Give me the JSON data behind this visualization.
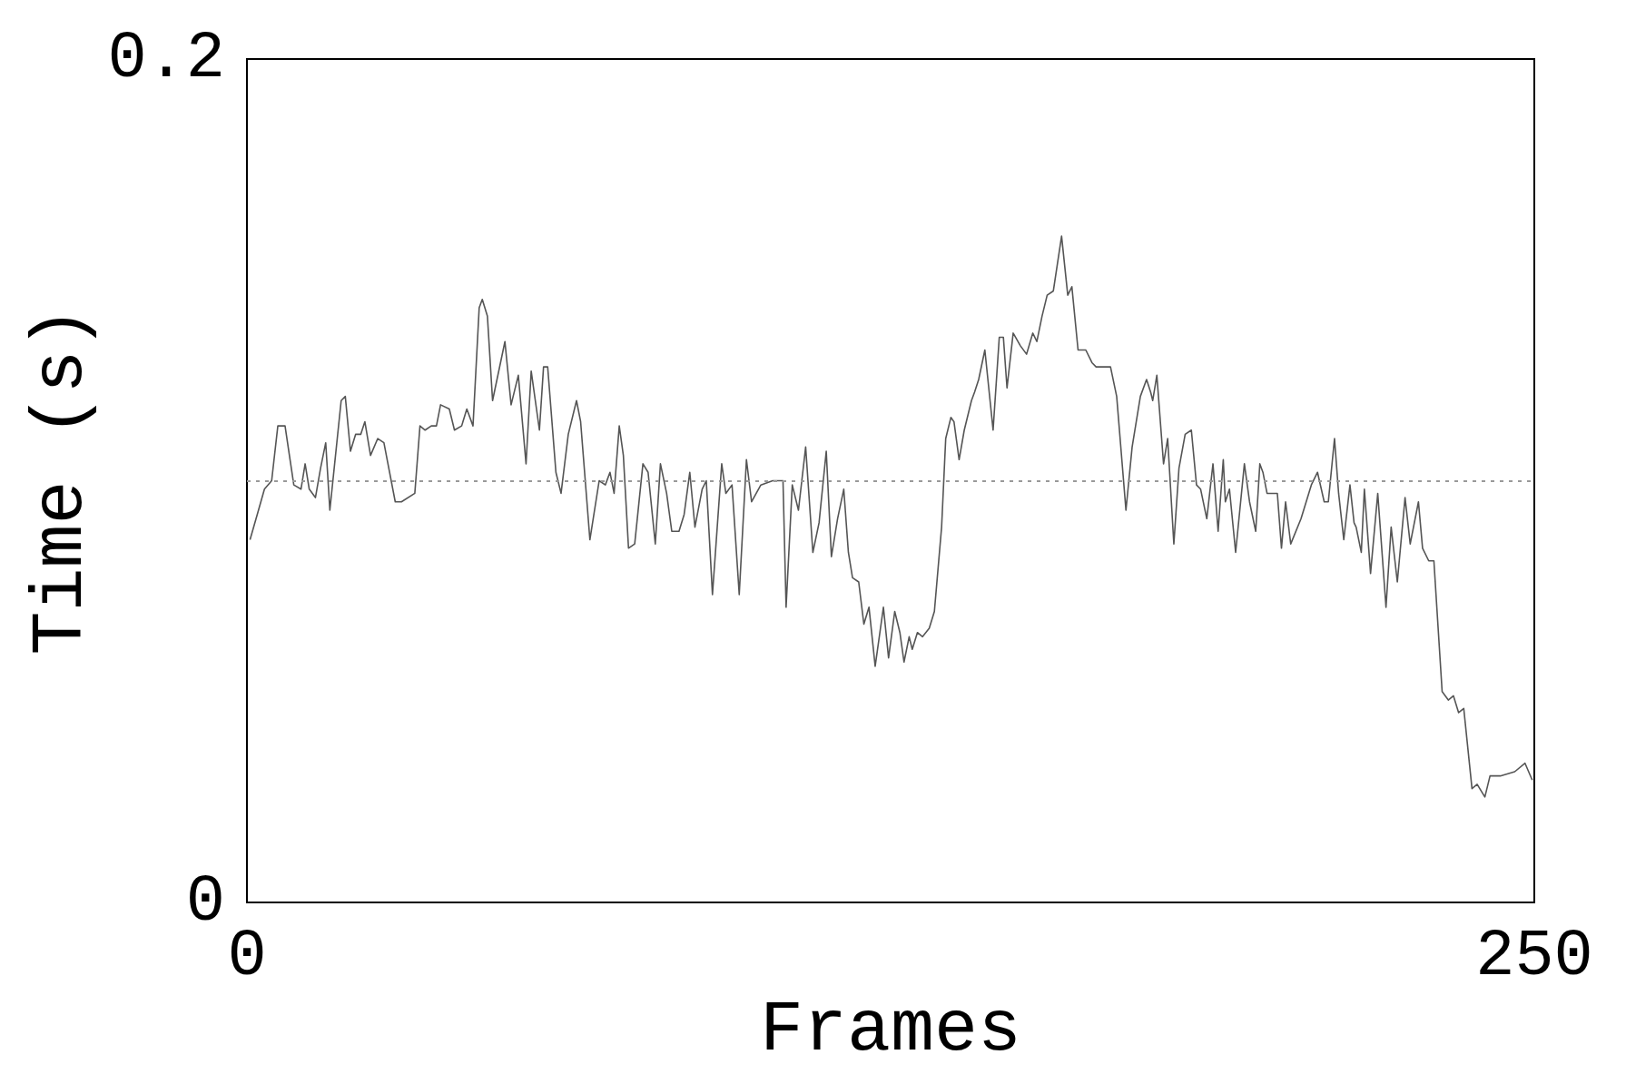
{
  "chart_data": {
    "type": "line",
    "xlabel": "Frames",
    "ylabel": "Time (s)",
    "xlim": [
      0,
      250
    ],
    "xticks": [
      0,
      250
    ],
    "ylim": [
      0,
      0.2
    ],
    "yticks": [
      0,
      0.2
    ],
    "grid": false,
    "marker": "none",
    "line_style": "solid",
    "ref_lines": [
      {
        "axis": "y",
        "value": 0.1,
        "color": "#999999",
        "line_style": "dotted"
      }
    ],
    "x": [
      0.6,
      2.0,
      3.4,
      4.8,
      6.0,
      7.4,
      9.1,
      10.5,
      11.3,
      12.1,
      13.3,
      14.3,
      15.3,
      16.1,
      18.3,
      19.1,
      20.1,
      21.1,
      22.1,
      22.9,
      24.0,
      25.4,
      26.6,
      28.8,
      30.0,
      32.6,
      33.6,
      34.6,
      35.8,
      36.8,
      37.6,
      39.3,
      40.3,
      41.7,
      42.7,
      43.9,
      45.1,
      45.7,
      46.7,
      47.7,
      50.1,
      51.3,
      52.7,
      54.2,
      55.2,
      56.8,
      57.6,
      58.4,
      60.0,
      61.0,
      62.4,
      64.0,
      64.8,
      66.6,
      68.4,
      69.6,
      70.5,
      71.3,
      72.3,
      73.1,
      74.1,
      75.3,
      76.9,
      77.9,
      79.3,
      80.3,
      81.5,
      82.5,
      83.9,
      84.9,
      86.0,
      87.0,
      88.4,
      89.2,
      90.4,
      92.2,
      93.0,
      94.2,
      95.6,
      97.0,
      98.0,
      99.8,
      102.1,
      104.1,
      104.7,
      105.9,
      107.1,
      108.5,
      109.9,
      111.1,
      112.5,
      113.5,
      114.7,
      115.9,
      116.8,
      117.6,
      118.8,
      119.8,
      120.8,
      122.0,
      123.6,
      124.6,
      125.8,
      126.8,
      127.6,
      128.6,
      129.2,
      130.2,
      131.2,
      132.5,
      133.5,
      134.9,
      135.7,
      136.7,
      137.3,
      138.3,
      139.3,
      140.7,
      141.3,
      142.1,
      143.3,
      144.9,
      146.1,
      146.9,
      147.6,
      148.8,
      150.2,
      151.4,
      152.6,
      153.4,
      154.4,
      155.4,
      156.6,
      158.2,
      159.4,
      160.2,
      161.4,
      162.9,
      164.1,
      164.9,
      165.9,
      167.7,
      168.9,
      170.7,
      171.9,
      173.5,
      174.7,
      175.5,
      175.9,
      176.7,
      178.0,
      178.8,
      180.0,
      181.0,
      182.2,
      183.4,
      184.4,
      185.2,
      186.4,
      187.6,
      188.6,
      189.6,
      190.0,
      190.8,
      192.0,
      193.7,
      194.7,
      195.9,
      196.7,
      197.3,
      198.1,
      199.3,
      200.1,
      200.9,
      201.7,
      202.7,
      204.7,
      205.7,
      206.7,
      207.9,
      209.2,
      210.0,
      211.2,
      212.0,
      213.0,
      214.2,
      215.0,
      215.4,
      216.4,
      217.0,
      218.2,
      219.6,
      221.2,
      222.2,
      223.4,
      224.9,
      225.9,
      227.5,
      228.3,
      229.5,
      230.5,
      232.1,
      233.3,
      234.3,
      235.3,
      236.3,
      237.9,
      238.9,
      240.4,
      241.4,
      243.4,
      246.2,
      248.2,
      249.6
    ],
    "series": [
      {
        "color": "#555555",
        "values": [
          0.086,
          0.092,
          0.098,
          0.1,
          0.113,
          0.113,
          0.099,
          0.098,
          0.104,
          0.098,
          0.096,
          0.103,
          0.109,
          0.093,
          0.119,
          0.12,
          0.107,
          0.111,
          0.111,
          0.114,
          0.106,
          0.11,
          0.109,
          0.095,
          0.095,
          0.097,
          0.113,
          0.112,
          0.113,
          0.113,
          0.118,
          0.117,
          0.112,
          0.113,
          0.117,
          0.113,
          0.141,
          0.143,
          0.139,
          0.119,
          0.133,
          0.118,
          0.125,
          0.104,
          0.126,
          0.112,
          0.127,
          0.127,
          0.102,
          0.097,
          0.111,
          0.119,
          0.114,
          0.086,
          0.1,
          0.099,
          0.102,
          0.097,
          0.113,
          0.106,
          0.084,
          0.085,
          0.104,
          0.102,
          0.085,
          0.104,
          0.097,
          0.088,
          0.088,
          0.092,
          0.102,
          0.089,
          0.098,
          0.1,
          0.073,
          0.104,
          0.097,
          0.099,
          0.073,
          0.105,
          0.095,
          0.099,
          0.1,
          0.1,
          0.07,
          0.099,
          0.093,
          0.108,
          0.083,
          0.09,
          0.107,
          0.082,
          0.091,
          0.098,
          0.083,
          0.077,
          0.076,
          0.066,
          0.07,
          0.056,
          0.07,
          0.058,
          0.069,
          0.064,
          0.057,
          0.063,
          0.06,
          0.064,
          0.063,
          0.065,
          0.069,
          0.089,
          0.11,
          0.115,
          0.114,
          0.105,
          0.112,
          0.119,
          0.121,
          0.124,
          0.131,
          0.112,
          0.134,
          0.134,
          0.122,
          0.135,
          0.132,
          0.13,
          0.135,
          0.133,
          0.139,
          0.144,
          0.145,
          0.158,
          0.144,
          0.146,
          0.131,
          0.131,
          0.128,
          0.127,
          0.127,
          0.127,
          0.12,
          0.093,
          0.108,
          0.12,
          0.124,
          0.121,
          0.119,
          0.125,
          0.104,
          0.11,
          0.085,
          0.103,
          0.111,
          0.112,
          0.099,
          0.098,
          0.091,
          0.104,
          0.088,
          0.105,
          0.095,
          0.098,
          0.083,
          0.104,
          0.095,
          0.088,
          0.104,
          0.102,
          0.097,
          0.097,
          0.097,
          0.084,
          0.095,
          0.085,
          0.091,
          0.095,
          0.099,
          0.102,
          0.095,
          0.095,
          0.11,
          0.097,
          0.086,
          0.099,
          0.09,
          0.089,
          0.083,
          0.098,
          0.078,
          0.097,
          0.07,
          0.089,
          0.076,
          0.096,
          0.085,
          0.095,
          0.084,
          0.081,
          0.081,
          0.05,
          0.048,
          0.049,
          0.045,
          0.046,
          0.027,
          0.028,
          0.025,
          0.03,
          0.03,
          0.031,
          0.033,
          0.029
        ]
      }
    ]
  }
}
